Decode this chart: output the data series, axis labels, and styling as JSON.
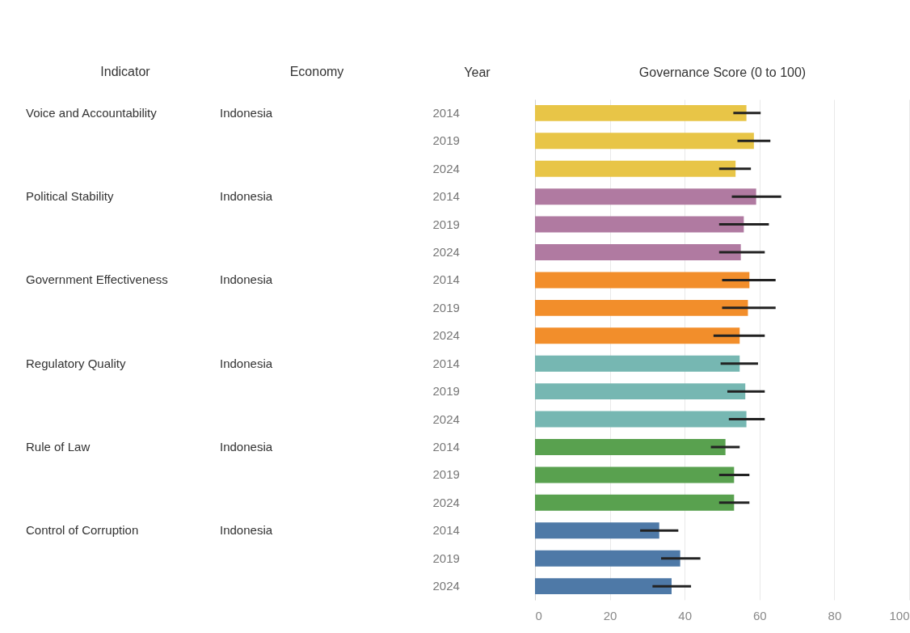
{
  "chart_data": {
    "type": "bar",
    "orientation": "horizontal",
    "xlabel": "Governance Score (0 to 100)",
    "ylabel": "Year",
    "categories": [
      "2014",
      "2019",
      "2024",
      "2014",
      "2019",
      "2024",
      "2014",
      "2019",
      "2024",
      "2014",
      "2019",
      "2024",
      "2014",
      "2019",
      "2024",
      "2014",
      "2019",
      "2024"
    ],
    "series": [
      {
        "color": "#e8c547",
        "values": [
          56.5,
          58.5,
          53.6,
          null,
          null,
          null,
          null,
          null,
          null,
          null,
          null,
          null,
          null,
          null,
          null,
          null,
          null,
          null
        ],
        "errors": [
          [
            53.0,
            60.3
          ],
          [
            54.1,
            62.9
          ],
          [
            49.2,
            57.7
          ],
          null,
          null,
          null,
          null,
          null,
          null,
          null,
          null,
          null,
          null,
          null,
          null,
          null,
          null,
          null
        ]
      },
      {
        "color": "#b07aa1",
        "values": [
          null,
          null,
          null,
          59.1,
          55.8,
          55.0,
          null,
          null,
          null,
          null,
          null,
          null,
          null,
          null,
          null,
          null,
          null,
          null
        ],
        "errors": [
          null,
          null,
          null,
          [
            52.6,
            65.8
          ],
          [
            49.2,
            62.5
          ],
          [
            49.2,
            61.4
          ],
          null,
          null,
          null,
          null,
          null,
          null,
          null,
          null,
          null,
          null,
          null,
          null
        ]
      },
      {
        "color": "#f28e2b",
        "values": [
          null,
          null,
          null,
          null,
          null,
          null,
          57.3,
          56.9,
          54.7,
          null,
          null,
          null,
          null,
          null,
          null,
          null,
          null,
          null
        ],
        "errors": [
          null,
          null,
          null,
          null,
          null,
          null,
          [
            50.0,
            64.3
          ],
          [
            50.0,
            64.3
          ],
          [
            47.7,
            61.4
          ],
          null,
          null,
          null,
          null,
          null,
          null,
          null,
          null,
          null
        ]
      },
      {
        "color": "#76b7b2",
        "values": [
          null,
          null,
          null,
          null,
          null,
          null,
          null,
          null,
          null,
          54.7,
          56.2,
          56.5,
          null,
          null,
          null,
          null,
          null,
          null
        ],
        "errors": [
          null,
          null,
          null,
          null,
          null,
          null,
          null,
          null,
          null,
          [
            49.6,
            59.6
          ],
          [
            51.4,
            61.4
          ],
          [
            51.8,
            61.4
          ],
          null,
          null,
          null,
          null,
          null,
          null
        ]
      },
      {
        "color": "#59a14f",
        "values": [
          null,
          null,
          null,
          null,
          null,
          null,
          null,
          null,
          null,
          null,
          null,
          null,
          50.9,
          53.2,
          53.2,
          null,
          null,
          null
        ],
        "errors": [
          null,
          null,
          null,
          null,
          null,
          null,
          null,
          null,
          null,
          null,
          null,
          null,
          [
            47.0,
            54.7
          ],
          [
            49.2,
            57.3
          ],
          [
            49.2,
            57.3
          ],
          null,
          null,
          null
        ]
      },
      {
        "color": "#4e79a7",
        "values": [
          null,
          null,
          null,
          null,
          null,
          null,
          null,
          null,
          null,
          null,
          null,
          null,
          null,
          null,
          null,
          33.2,
          38.8,
          36.5
        ],
        "errors": [
          null,
          null,
          null,
          null,
          null,
          null,
          null,
          null,
          null,
          null,
          null,
          null,
          null,
          null,
          null,
          [
            28.1,
            38.3
          ],
          [
            33.7,
            44.2
          ],
          [
            31.4,
            41.7
          ]
        ]
      }
    ],
    "xlim": [
      0,
      100
    ],
    "xticks": [
      0,
      20,
      40,
      60,
      80,
      100
    ],
    "grid": "x",
    "annotations": [
      "Indicator",
      "Economy",
      "Voice and Accountability",
      "Indonesia",
      "Political Stability",
      "Indonesia",
      "Government Effectiveness",
      "Indonesia",
      "Regulatory Quality",
      "Indonesia",
      "Rule of Law",
      "Indonesia",
      "Control of Corruption",
      "Indonesia"
    ]
  }
}
